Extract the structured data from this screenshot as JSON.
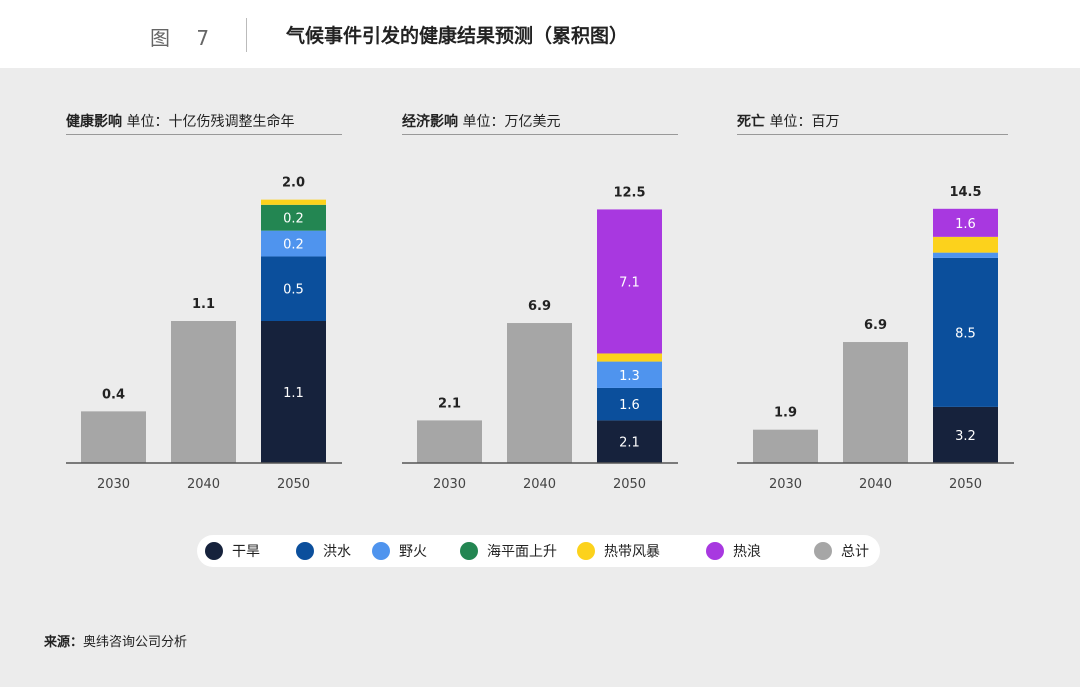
{
  "header": {
    "figure_label": "图 7",
    "title": "气候事件引发的健康结果预测（累积图）"
  },
  "legend": [
    {
      "label": "干旱",
      "color": "#16223c"
    },
    {
      "label": "洪水",
      "color": "#0b4f9c"
    },
    {
      "label": "野火",
      "color": "#4f94ee"
    },
    {
      "label": "海平面上升",
      "color": "#238652"
    },
    {
      "label": "热带风暴",
      "color": "#fcd21c"
    },
    {
      "label": "热浪",
      "color": "#a838e0"
    },
    {
      "label": "总计",
      "color": "#a6a6a6"
    }
  ],
  "source": {
    "label": "来源：",
    "text": "奥纬咨询公司分析"
  },
  "chart_data": [
    {
      "type": "bar",
      "stacked": true,
      "title": "健康影响",
      "unit_label": "单位：十亿伤残调整生命年",
      "categories": [
        "2030",
        "2040",
        "2050"
      ],
      "totals": [
        "0.4",
        "1.1",
        "2.0"
      ],
      "ylim": [
        0,
        2.2
      ],
      "series": [
        {
          "name": "总计",
          "color": "#a6a6a6",
          "values": [
            0.4,
            1.1,
            null
          ],
          "labels": [
            "",
            "",
            ""
          ]
        },
        {
          "name": "干旱",
          "color": "#16223c",
          "values": [
            null,
            null,
            1.1
          ],
          "labels": [
            "",
            "",
            "1.1"
          ]
        },
        {
          "name": "洪水",
          "color": "#0b4f9c",
          "values": [
            null,
            null,
            0.5
          ],
          "labels": [
            "",
            "",
            "0.5"
          ]
        },
        {
          "name": "野火",
          "color": "#4f94ee",
          "values": [
            null,
            null,
            0.2
          ],
          "labels": [
            "",
            "",
            "0.2"
          ]
        },
        {
          "name": "海平面上升",
          "color": "#238652",
          "values": [
            null,
            null,
            0.2
          ],
          "labels": [
            "",
            "",
            "0.2"
          ]
        },
        {
          "name": "热带风暴",
          "color": "#fcd21c",
          "values": [
            null,
            null,
            0.04
          ],
          "labels": [
            "",
            "",
            ""
          ]
        }
      ]
    },
    {
      "type": "bar",
      "stacked": true,
      "title": "经济影响",
      "unit_label": "单位：万亿美元",
      "categories": [
        "2030",
        "2040",
        "2050"
      ],
      "totals": [
        "2.1",
        "6.9",
        "12.5"
      ],
      "ylim": [
        0,
        14
      ],
      "series": [
        {
          "name": "总计",
          "color": "#a6a6a6",
          "values": [
            2.1,
            6.9,
            null
          ],
          "labels": [
            "",
            "",
            ""
          ]
        },
        {
          "name": "干旱",
          "color": "#16223c",
          "values": [
            null,
            null,
            2.1
          ],
          "labels": [
            "",
            "",
            "2.1"
          ]
        },
        {
          "name": "洪水",
          "color": "#0b4f9c",
          "values": [
            null,
            null,
            1.6
          ],
          "labels": [
            "",
            "",
            "1.6"
          ]
        },
        {
          "name": "野火",
          "color": "#4f94ee",
          "values": [
            null,
            null,
            1.3
          ],
          "labels": [
            "",
            "",
            "1.3"
          ]
        },
        {
          "name": "热带风暴",
          "color": "#fcd21c",
          "values": [
            null,
            null,
            0.4
          ],
          "labels": [
            "",
            "",
            ""
          ]
        },
        {
          "name": "热浪",
          "color": "#a838e0",
          "values": [
            null,
            null,
            7.1
          ],
          "labels": [
            "",
            "",
            "7.1"
          ]
        }
      ]
    },
    {
      "type": "bar",
      "stacked": true,
      "title": "死亡",
      "unit_label": "单位：百万",
      "categories": [
        "2030",
        "2040",
        "2050"
      ],
      "totals": [
        "1.9",
        "6.9",
        "14.5"
      ],
      "ylim": [
        0,
        16.2
      ],
      "series": [
        {
          "name": "总计",
          "color": "#a6a6a6",
          "values": [
            1.9,
            6.9,
            null
          ],
          "labels": [
            "",
            "",
            ""
          ]
        },
        {
          "name": "干旱",
          "color": "#16223c",
          "values": [
            null,
            null,
            3.2
          ],
          "labels": [
            "",
            "",
            "3.2"
          ]
        },
        {
          "name": "洪水",
          "color": "#0b4f9c",
          "values": [
            null,
            null,
            8.5
          ],
          "labels": [
            "",
            "",
            "8.5"
          ]
        },
        {
          "name": "野火",
          "color": "#4f94ee",
          "values": [
            null,
            null,
            0.3
          ],
          "labels": [
            "",
            "",
            ""
          ]
        },
        {
          "name": "热带风暴",
          "color": "#fcd21c",
          "values": [
            null,
            null,
            0.9
          ],
          "labels": [
            "",
            "",
            ""
          ]
        },
        {
          "name": "热浪",
          "color": "#a838e0",
          "values": [
            null,
            null,
            1.6
          ],
          "labels": [
            "",
            "",
            "1.6"
          ]
        }
      ]
    }
  ]
}
